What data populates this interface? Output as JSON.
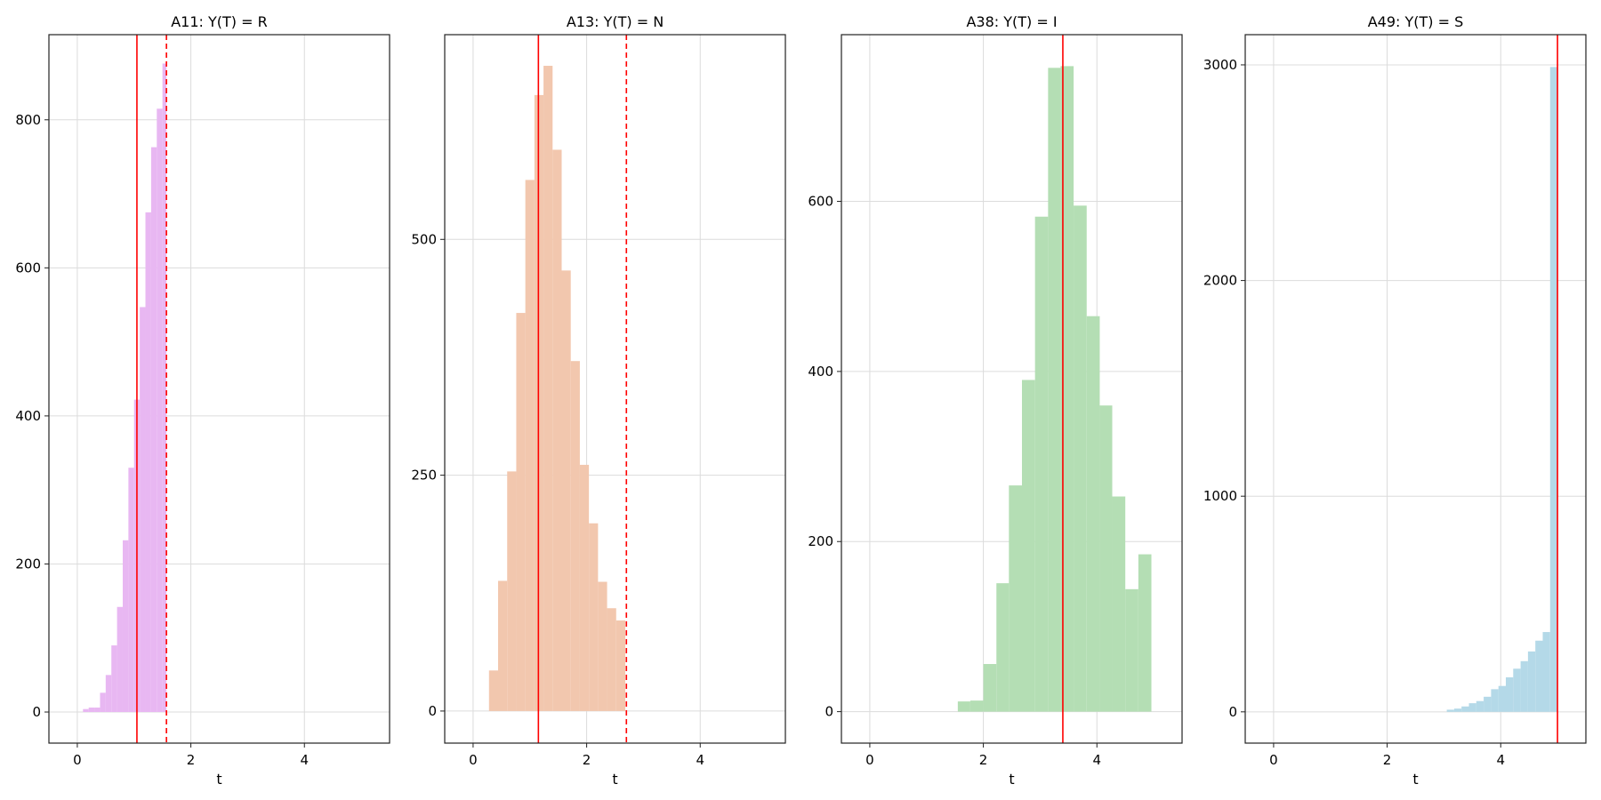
{
  "colors": {
    "vline": "#ff0000"
  },
  "chart_data": [
    {
      "type": "bar",
      "subtype": "histogram",
      "title": "A11: Y(T) = R",
      "xlabel": "t",
      "ylabel": "",
      "xlim": [
        -0.5,
        5.5
      ],
      "ylim": [
        -42,
        915
      ],
      "xticks": [
        0,
        2,
        4
      ],
      "yticks": [
        0,
        200,
        400,
        600,
        800
      ],
      "grid": true,
      "color": "#e8b7f2",
      "bins": [
        {
          "x0": 0.1,
          "x1": 0.2,
          "y": 4
        },
        {
          "x0": 0.2,
          "x1": 0.3,
          "y": 6
        },
        {
          "x0": 0.3,
          "x1": 0.4,
          "y": 6
        },
        {
          "x0": 0.4,
          "x1": 0.5,
          "y": 26
        },
        {
          "x0": 0.5,
          "x1": 0.6,
          "y": 50
        },
        {
          "x0": 0.6,
          "x1": 0.7,
          "y": 90
        },
        {
          "x0": 0.7,
          "x1": 0.8,
          "y": 142
        },
        {
          "x0": 0.8,
          "x1": 0.9,
          "y": 232
        },
        {
          "x0": 0.9,
          "x1": 1.0,
          "y": 330
        },
        {
          "x0": 1.0,
          "x1": 1.1,
          "y": 422
        },
        {
          "x0": 1.1,
          "x1": 1.2,
          "y": 547
        },
        {
          "x0": 1.2,
          "x1": 1.3,
          "y": 675
        },
        {
          "x0": 1.3,
          "x1": 1.4,
          "y": 763
        },
        {
          "x0": 1.4,
          "x1": 1.5,
          "y": 815
        },
        {
          "x0": 1.5,
          "x1": 1.57,
          "y": 876
        }
      ],
      "vlines": [
        {
          "x": 1.05,
          "style": "solid"
        },
        {
          "x": 1.57,
          "style": "dashed"
        }
      ]
    },
    {
      "type": "bar",
      "subtype": "histogram",
      "title": "A13: Y(T) = N",
      "xlabel": "t",
      "ylabel": "",
      "xlim": [
        -0.5,
        5.5
      ],
      "ylim": [
        -34,
        717
      ],
      "xticks": [
        0,
        2,
        4
      ],
      "yticks": [
        0,
        250,
        500
      ],
      "grid": true,
      "color": "#f2c7ae",
      "bins": [
        {
          "x0": 0.28,
          "x1": 0.44,
          "y": 43
        },
        {
          "x0": 0.44,
          "x1": 0.6,
          "y": 138
        },
        {
          "x0": 0.6,
          "x1": 0.76,
          "y": 254
        },
        {
          "x0": 0.76,
          "x1": 0.92,
          "y": 422
        },
        {
          "x0": 0.92,
          "x1": 1.08,
          "y": 563
        },
        {
          "x0": 1.08,
          "x1": 1.24,
          "y": 653
        },
        {
          "x0": 1.24,
          "x1": 1.4,
          "y": 684
        },
        {
          "x0": 1.4,
          "x1": 1.56,
          "y": 595
        },
        {
          "x0": 1.56,
          "x1": 1.72,
          "y": 467
        },
        {
          "x0": 1.72,
          "x1": 1.88,
          "y": 371
        },
        {
          "x0": 1.88,
          "x1": 2.04,
          "y": 261
        },
        {
          "x0": 2.04,
          "x1": 2.2,
          "y": 199
        },
        {
          "x0": 2.2,
          "x1": 2.36,
          "y": 137
        },
        {
          "x0": 2.36,
          "x1": 2.52,
          "y": 109
        },
        {
          "x0": 2.52,
          "x1": 2.68,
          "y": 96
        }
      ],
      "vlines": [
        {
          "x": 1.15,
          "style": "solid"
        },
        {
          "x": 2.7,
          "style": "dashed"
        }
      ]
    },
    {
      "type": "bar",
      "subtype": "histogram",
      "title": "A38: Y(T) = I",
      "xlabel": "t",
      "ylabel": "",
      "xlim": [
        -0.5,
        5.5
      ],
      "ylim": [
        -37,
        796
      ],
      "xticks": [
        0,
        2,
        4
      ],
      "yticks": [
        0,
        200,
        400,
        600
      ],
      "grid": true,
      "color": "#b4deb4",
      "bins": [
        {
          "x0": 1.55,
          "x1": 1.77,
          "y": 12
        },
        {
          "x0": 1.77,
          "x1": 2.0,
          "y": 13
        },
        {
          "x0": 2.0,
          "x1": 2.23,
          "y": 56
        },
        {
          "x0": 2.23,
          "x1": 2.45,
          "y": 151
        },
        {
          "x0": 2.45,
          "x1": 2.68,
          "y": 266
        },
        {
          "x0": 2.68,
          "x1": 2.91,
          "y": 390
        },
        {
          "x0": 2.91,
          "x1": 3.14,
          "y": 582
        },
        {
          "x0": 3.14,
          "x1": 3.36,
          "y": 757
        },
        {
          "x0": 3.36,
          "x1": 3.59,
          "y": 759
        },
        {
          "x0": 3.59,
          "x1": 3.82,
          "y": 595
        },
        {
          "x0": 3.82,
          "x1": 4.05,
          "y": 465
        },
        {
          "x0": 4.05,
          "x1": 4.27,
          "y": 360
        },
        {
          "x0": 4.27,
          "x1": 4.5,
          "y": 253
        },
        {
          "x0": 4.5,
          "x1": 4.73,
          "y": 144
        },
        {
          "x0": 4.73,
          "x1": 4.96,
          "y": 185
        }
      ],
      "vlines": [
        {
          "x": 3.4,
          "style": "solid"
        }
      ]
    },
    {
      "type": "bar",
      "subtype": "histogram",
      "title": "A49: Y(T) = S",
      "xlabel": "t",
      "ylabel": "",
      "xlim": [
        -0.5,
        5.5
      ],
      "ylim": [
        -145,
        3140
      ],
      "xticks": [
        0,
        2,
        4
      ],
      "yticks": [
        0,
        1000,
        2000,
        3000
      ],
      "grid": true,
      "color": "#b4d9e8",
      "bins": [
        {
          "x0": 3.05,
          "x1": 3.18,
          "y": 10
        },
        {
          "x0": 3.18,
          "x1": 3.31,
          "y": 15
        },
        {
          "x0": 3.31,
          "x1": 3.44,
          "y": 25
        },
        {
          "x0": 3.44,
          "x1": 3.57,
          "y": 40
        },
        {
          "x0": 3.57,
          "x1": 3.7,
          "y": 50
        },
        {
          "x0": 3.7,
          "x1": 3.83,
          "y": 70
        },
        {
          "x0": 3.83,
          "x1": 3.96,
          "y": 105
        },
        {
          "x0": 3.96,
          "x1": 4.09,
          "y": 120
        },
        {
          "x0": 4.09,
          "x1": 4.22,
          "y": 160
        },
        {
          "x0": 4.22,
          "x1": 4.35,
          "y": 200
        },
        {
          "x0": 4.35,
          "x1": 4.48,
          "y": 235
        },
        {
          "x0": 4.48,
          "x1": 4.61,
          "y": 280
        },
        {
          "x0": 4.61,
          "x1": 4.74,
          "y": 330
        },
        {
          "x0": 4.74,
          "x1": 4.87,
          "y": 370
        },
        {
          "x0": 4.87,
          "x1": 5.0,
          "y": 2990
        }
      ],
      "vlines": [
        {
          "x": 5.0,
          "style": "solid"
        }
      ]
    }
  ]
}
